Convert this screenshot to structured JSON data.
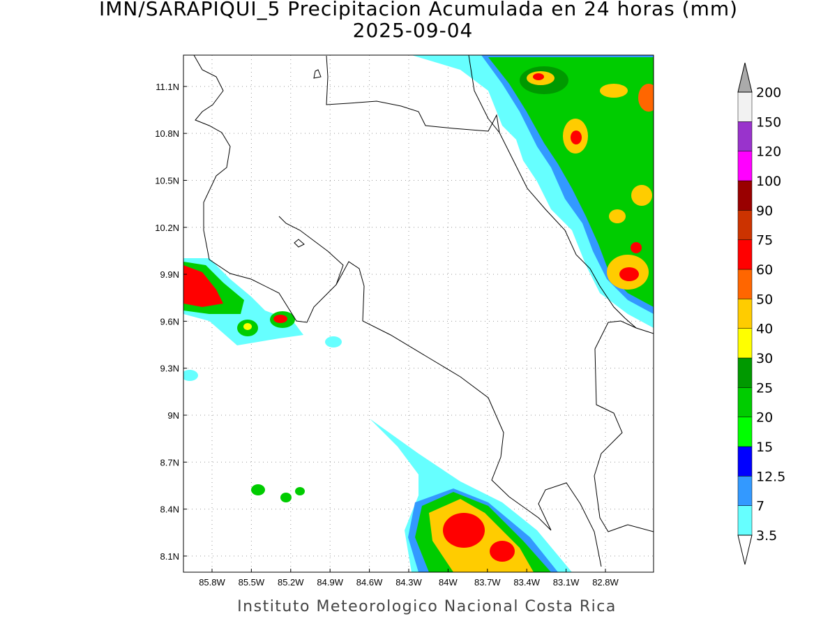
{
  "title": "IMN/SARAPIQUI_5 Precipitacion Acumulada en 24 horas (mm)",
  "subtitle": "2025-09-04",
  "footer": "Instituto Meteorologico Nacional Costa Rica",
  "map": {
    "lon_range": [
      -86.018,
      -82.433
    ],
    "lat_range": [
      7.997,
      11.3
    ],
    "lat_ticks": [
      {
        "value": 11.1,
        "label": "11.1N"
      },
      {
        "value": 10.8,
        "label": "10.8N"
      },
      {
        "value": 10.5,
        "label": "10.5N"
      },
      {
        "value": 10.2,
        "label": "10.2N"
      },
      {
        "value": 9.9,
        "label": "9.9N"
      },
      {
        "value": 9.6,
        "label": "9.6N"
      },
      {
        "value": 9.3,
        "label": "9.3N"
      },
      {
        "value": 9,
        "label": "9N"
      },
      {
        "value": 8.7,
        "label": "8.7N"
      },
      {
        "value": 8.4,
        "label": "8.4N"
      },
      {
        "value": 8.1,
        "label": "8.1N"
      }
    ],
    "lon_ticks": [
      {
        "value": -85.8,
        "label": "85.8W"
      },
      {
        "value": -85.5,
        "label": "85.5W"
      },
      {
        "value": -85.2,
        "label": "85.2W"
      },
      {
        "value": -84.9,
        "label": "84.9W"
      },
      {
        "value": -84.6,
        "label": "84.6W"
      },
      {
        "value": -84.3,
        "label": "84.3W"
      },
      {
        "value": -84,
        "label": "84W"
      },
      {
        "value": -83.7,
        "label": "83.7W"
      },
      {
        "value": -83.4,
        "label": "83.4W"
      },
      {
        "value": -83.1,
        "label": "83.1W"
      },
      {
        "value": -82.8,
        "label": "82.8W"
      }
    ]
  },
  "colorbar": {
    "levels": [
      3.5,
      7,
      12.5,
      15,
      20,
      25,
      30,
      40,
      50,
      60,
      75,
      90,
      100,
      120,
      150,
      200
    ],
    "colors": [
      "#66ffff",
      "#3399ff",
      "#0000ff",
      "#00ff00",
      "#00cc00",
      "#009900",
      "#ffff00",
      "#ffcc00",
      "#ff6600",
      "#ff0000",
      "#cc3300",
      "#990000",
      "#ff00ff",
      "#9933cc",
      "#f2f2f2"
    ],
    "over_color": "#aaaaaa",
    "under_color": "#ffffff"
  }
}
